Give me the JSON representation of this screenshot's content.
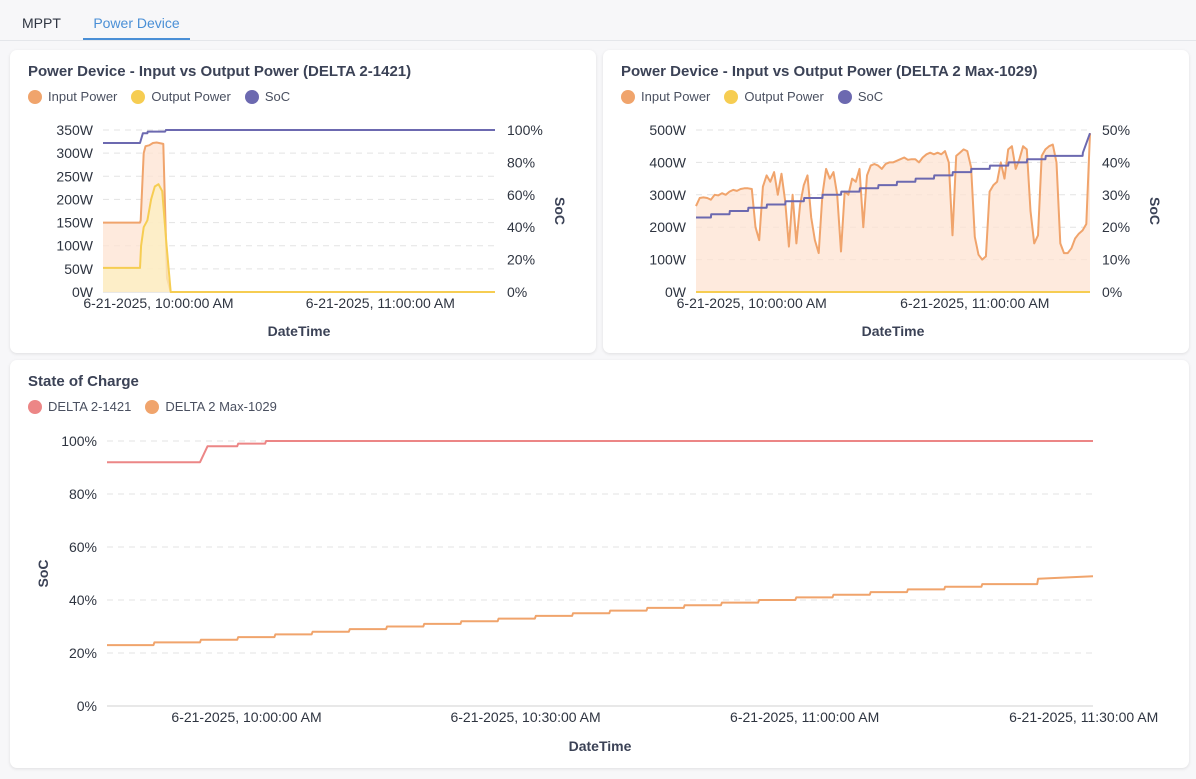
{
  "tabs": [
    {
      "label": "MPPT",
      "active": false
    },
    {
      "label": "Power Device",
      "active": true
    }
  ],
  "colors": {
    "input_power": "#f0a46c",
    "input_power_fill": "#fde3d1",
    "output_power": "#f6cd52",
    "output_power_fill": "#fcefc0",
    "soc": "#6c69b0",
    "delta2": "#ec8686",
    "delta2max": "#f0a46c",
    "grid": "#e3e3e3",
    "axis_text": "#2e3440",
    "tab_active": "#4a8fd6"
  },
  "chart_data": [
    {
      "id": "chart1",
      "type": "line",
      "title": "Power Device - Input vs Output Power (DELTA 2-1421)",
      "legend_position": "top-left",
      "grid": true,
      "xlabel": "DateTime",
      "ylabel_left": "",
      "ylabel_right": "SoC",
      "x_unit": "minutes after 9:45 AM, 6-21-2025",
      "xlim": [
        0,
        106
      ],
      "x_ticks": [
        {
          "value": 15,
          "label": "6-21-2025, 10:00:00 AM"
        },
        {
          "value": 75,
          "label": "6-21-2025, 11:00:00 AM"
        }
      ],
      "ylim_left": [
        0,
        350
      ],
      "yticks_left": [
        {
          "value": 0,
          "label": "0W"
        },
        {
          "value": 50,
          "label": "50W"
        },
        {
          "value": 100,
          "label": "100W"
        },
        {
          "value": 150,
          "label": "150W"
        },
        {
          "value": 200,
          "label": "200W"
        },
        {
          "value": 250,
          "label": "250W"
        },
        {
          "value": 300,
          "label": "300W"
        },
        {
          "value": 350,
          "label": "350W"
        }
      ],
      "ylim_right": [
        0,
        100
      ],
      "yticks_right": [
        {
          "value": 0,
          "label": "0%"
        },
        {
          "value": 20,
          "label": "20%"
        },
        {
          "value": 40,
          "label": "40%"
        },
        {
          "value": 60,
          "label": "60%"
        },
        {
          "value": 80,
          "label": "80%"
        },
        {
          "value": 100,
          "label": "100%"
        }
      ],
      "series": [
        {
          "name": "Input Power",
          "axis": "left",
          "color_key": "input_power",
          "fill_key": "input_power_fill",
          "x": [
            0,
            10,
            10.2,
            11,
            11.5,
            12.5,
            13.5,
            14.5,
            16.3,
            17.3,
            18.3,
            106
          ],
          "y": [
            150,
            150,
            155,
            300,
            315,
            317,
            322,
            323,
            320,
            30,
            0,
            0
          ]
        },
        {
          "name": "Output Power",
          "axis": "left",
          "color_key": "output_power",
          "fill_key": "output_power_fill",
          "x": [
            0,
            10,
            10.3,
            11,
            12,
            13,
            14,
            15,
            16,
            17.2,
            18.3,
            106
          ],
          "y": [
            52,
            52,
            100,
            140,
            155,
            200,
            228,
            233,
            218,
            100,
            0,
            0
          ]
        },
        {
          "name": "SoC",
          "axis": "right",
          "color_key": "soc",
          "x": [
            0,
            10,
            10.8,
            12,
            12.1,
            16.8,
            17,
            106
          ],
          "y": [
            92,
            92,
            98,
            98,
            99,
            99,
            100,
            100
          ]
        }
      ]
    },
    {
      "id": "chart2",
      "type": "line",
      "title": "Power Device - Input vs Output Power (DELTA 2 Max-1029)",
      "legend_position": "top-left",
      "grid": true,
      "xlabel": "DateTime",
      "ylabel_left": "",
      "ylabel_right": "SoC",
      "x_unit": "minutes after 9:45 AM, 6-21-2025",
      "xlim": [
        0,
        106
      ],
      "x_ticks": [
        {
          "value": 15,
          "label": "6-21-2025, 10:00:00 AM"
        },
        {
          "value": 75,
          "label": "6-21-2025, 11:00:00 AM"
        }
      ],
      "ylim_left": [
        0,
        500
      ],
      "yticks_left": [
        {
          "value": 0,
          "label": "0W"
        },
        {
          "value": 100,
          "label": "100W"
        },
        {
          "value": 200,
          "label": "200W"
        },
        {
          "value": 300,
          "label": "300W"
        },
        {
          "value": 400,
          "label": "400W"
        },
        {
          "value": 500,
          "label": "500W"
        }
      ],
      "ylim_right": [
        0,
        50
      ],
      "yticks_right": [
        {
          "value": 0,
          "label": "0%"
        },
        {
          "value": 10,
          "label": "10%"
        },
        {
          "value": 20,
          "label": "20%"
        },
        {
          "value": 30,
          "label": "30%"
        },
        {
          "value": 40,
          "label": "40%"
        },
        {
          "value": 50,
          "label": "50%"
        }
      ],
      "series": [
        {
          "name": "Input Power",
          "axis": "left",
          "color_key": "input_power",
          "fill_key": "input_power_fill",
          "x": [
            0,
            1,
            2,
            3,
            4,
            5,
            6,
            7,
            8,
            9,
            10,
            11,
            12,
            13,
            14,
            15,
            16,
            17,
            18,
            19,
            20,
            21,
            22,
            23,
            24,
            25,
            26,
            27,
            28,
            29,
            30,
            31,
            32,
            33,
            34,
            35,
            36,
            37,
            38,
            39,
            40,
            41,
            42,
            43,
            44,
            45,
            46,
            47,
            48,
            49,
            50,
            51,
            52,
            53,
            54,
            55,
            56,
            57,
            58,
            59,
            60,
            61,
            62,
            63,
            64,
            65,
            66,
            67,
            68,
            69,
            70,
            71,
            72,
            73,
            74,
            75,
            76,
            77,
            78,
            79,
            80,
            81,
            82,
            83,
            84,
            85,
            86,
            87,
            88,
            89,
            90,
            91,
            92,
            93,
            94,
            95,
            96,
            97,
            98,
            99,
            100,
            101,
            102,
            103,
            104,
            105,
            106
          ],
          "y": [
            265,
            290,
            292,
            290,
            285,
            300,
            298,
            305,
            300,
            310,
            315,
            312,
            318,
            320,
            320,
            318,
            200,
            160,
            325,
            360,
            340,
            370,
            300,
            365,
            280,
            140,
            300,
            150,
            270,
            330,
            360,
            230,
            160,
            120,
            300,
            380,
            350,
            370,
            300,
            125,
            310,
            300,
            350,
            340,
            380,
            200,
            360,
            390,
            395,
            390,
            380,
            395,
            400,
            400,
            405,
            410,
            415,
            408,
            410,
            410,
            400,
            415,
            425,
            430,
            425,
            430,
            425,
            435,
            400,
            175,
            420,
            430,
            440,
            435,
            385,
            170,
            115,
            100,
            110,
            310,
            330,
            340,
            400,
            350,
            440,
            450,
            380,
            410,
            450,
            440,
            250,
            150,
            175,
            420,
            440,
            450,
            455,
            400,
            150,
            120,
            120,
            135,
            165,
            180,
            190,
            210,
            490
          ]
        },
        {
          "name": "Output Power",
          "axis": "left",
          "color_key": "output_power",
          "fill_key": "output_power_fill",
          "x": [
            0,
            106
          ],
          "y": [
            0,
            0
          ]
        },
        {
          "name": "SoC",
          "axis": "right",
          "color_key": "soc",
          "x": [
            0,
            4,
            4.1,
            9,
            9.1,
            14,
            14.1,
            19,
            19.1,
            24,
            24.1,
            29,
            29.1,
            34,
            34.1,
            39,
            39.1,
            44,
            44.1,
            49,
            49.1,
            54,
            54.1,
            59,
            59.1,
            64,
            64.1,
            69,
            69.1,
            74,
            74.1,
            79,
            79.1,
            84,
            84.1,
            89,
            89.1,
            94,
            94.1,
            104,
            104.1,
            106
          ],
          "y": [
            23,
            23,
            24,
            24,
            25,
            25,
            26,
            26,
            27,
            27,
            28,
            28,
            29,
            29,
            30,
            30,
            31,
            31,
            32,
            32,
            33,
            33,
            34,
            34,
            35,
            35,
            36,
            36,
            37,
            37,
            38,
            38,
            39,
            39,
            40,
            40,
            41,
            41,
            42,
            42,
            43,
            49
          ]
        }
      ]
    },
    {
      "id": "chart3",
      "type": "line",
      "title": "State of Charge",
      "legend_position": "top-left",
      "grid": true,
      "xlabel": "DateTime",
      "ylabel": "SoC",
      "x_unit": "minutes after 9:45 AM, 6-21-2025",
      "xlim": [
        0,
        106
      ],
      "x_ticks": [
        {
          "value": 15,
          "label": "6-21-2025, 10:00:00 AM"
        },
        {
          "value": 45,
          "label": "6-21-2025, 10:30:00 AM"
        },
        {
          "value": 75,
          "label": "6-21-2025, 11:00:00 AM"
        },
        {
          "value": 105,
          "label": "6-21-2025, 11:30:00 AM"
        }
      ],
      "ylim": [
        0,
        100
      ],
      "yticks": [
        {
          "value": 0,
          "label": "0%"
        },
        {
          "value": 20,
          "label": "20%"
        },
        {
          "value": 40,
          "label": "40%"
        },
        {
          "value": 60,
          "label": "60%"
        },
        {
          "value": 80,
          "label": "80%"
        },
        {
          "value": 100,
          "label": "100%"
        }
      ],
      "series": [
        {
          "name": "DELTA 2-1421",
          "color_key": "delta2",
          "x": [
            0,
            10,
            10.8,
            14,
            14.1,
            17,
            17.1,
            106
          ],
          "y": [
            92,
            92,
            98,
            98,
            99,
            99,
            100,
            100
          ]
        },
        {
          "name": "DELTA 2 Max-1029",
          "color_key": "delta2max",
          "x": [
            0,
            5,
            5.1,
            10,
            10.1,
            14,
            14.1,
            18,
            18.1,
            22,
            22.1,
            26,
            26.1,
            30,
            30.1,
            34,
            34.1,
            38,
            38.1,
            42,
            42.1,
            46,
            46.1,
            50,
            50.1,
            54,
            54.1,
            58,
            58.1,
            62,
            62.1,
            66,
            66.1,
            70,
            70.1,
            74,
            74.1,
            78,
            78.1,
            82,
            82.1,
            86,
            86.1,
            90,
            90.1,
            94,
            94.1,
            100,
            100.1,
            106
          ],
          "y": [
            23,
            23,
            24,
            24,
            25,
            25,
            26,
            26,
            27,
            27,
            28,
            28,
            29,
            29,
            30,
            30,
            31,
            31,
            32,
            32,
            33,
            33,
            34,
            34,
            35,
            35,
            36,
            36,
            37,
            37,
            38,
            38,
            39,
            39,
            40,
            40,
            41,
            41,
            42,
            42,
            43,
            43,
            44,
            44,
            45,
            45,
            46,
            46,
            48,
            49
          ]
        }
      ]
    }
  ]
}
